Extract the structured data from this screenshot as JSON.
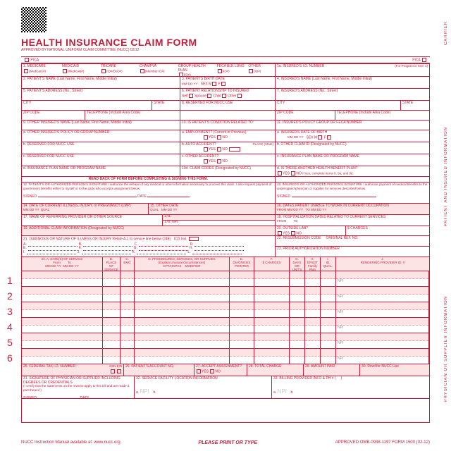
{
  "title": "HEALTH INSURANCE CLAIM FORM",
  "subtitle": "APPROVED BY NATIONAL UNIFORM CLAIM COMMITTEE (NUCC) 02/12",
  "pica": "PICA",
  "side": {
    "carrier": "CARRIER",
    "patient": "PATIENT AND INSURED INFORMATION",
    "phys": "PHYSICIAN OR SUPPLIER INFORMATION"
  },
  "r1": {
    "medicare": "MEDICARE",
    "medicaid": "MEDICAID",
    "tricare": "TRICARE",
    "champva": "CHAMPVA",
    "group": "GROUP HEALTH PLAN",
    "feca": "FECA BLK LUNG",
    "other": "OTHER",
    "sub_medicare": "(Medicare#)",
    "sub_medicaid": "(Medicaid#)",
    "sub_tricare": "(ID#/DoD#)",
    "sub_champva": "(Member ID#)",
    "sub_group": "(ID#)",
    "sub_feca": "(ID#)",
    "sub_other": "(ID#)",
    "ins_id": "1a. INSURED'S I.D. NUMBER",
    "ins_id_sub": "(For Program in Item 1)"
  },
  "r2": {
    "a": "2. PATIENT'S NAME (Last Name, First Name, Middle Initial)",
    "b": "3. PATIENT'S BIRTH DATE",
    "c": "4. INSURED'S NAME (Last Name, First Name, Middle Initial)",
    "mm": "MM",
    "dd": "DD",
    "yy": "YY",
    "sex": "SEX",
    "m": "M",
    "f": "F"
  },
  "r3": {
    "a": "5. PATIENT'S ADDRESS (No., Street)",
    "b": "6. PATIENT RELATIONSHIP TO INSURED",
    "c": "7. INSURED'S ADDRESS (No., Street)",
    "self": "Self",
    "spouse": "Spouse",
    "child": "Child",
    "other": "Other"
  },
  "r4": {
    "city": "CITY",
    "state": "STATE",
    "r8": "8. RESERVED FOR NUCC USE"
  },
  "r5": {
    "zip": "ZIP CODE",
    "tel": "TELEPHONE (Include Area Code)"
  },
  "r6": {
    "a": "9. OTHER INSURED'S NAME (Last Name, First Name, Middle Initial)",
    "b": "10. IS PATIENT'S CONDITION RELATED TO:",
    "c": "11. INSURED'S POLICY GROUP OR FECA NUMBER"
  },
  "r7": {
    "a": "a. OTHER INSURED'S POLICY OR GROUP NUMBER",
    "b": "a. EMPLOYMENT? (Current or Previous)",
    "c": "a. INSURED'S DATE OF BIRTH",
    "yes": "YES",
    "no": "NO"
  },
  "r8": {
    "a": "b. RESERVED FOR NUCC USE",
    "b": "b. AUTO ACCIDENT?",
    "c": "b. OTHER CLAIM ID (Designated by NUCC)",
    "place": "PLACE (State)"
  },
  "r9": {
    "a": "c. RESERVED FOR NUCC USE",
    "b": "c. OTHER ACCIDENT?",
    "c": "c. INSURANCE PLAN NAME OR PROGRAM NAME"
  },
  "r10": {
    "a": "d. INSURANCE PLAN NAME OR PROGRAM NAME",
    "b": "10d. CLAIM CODES (Designated by NUCC)",
    "c": "d. IS THERE ANOTHER HEALTH BENEFIT PLAN?",
    "ifyes": "If yes, complete items 9, 9a, and 9d."
  },
  "band": "READ BACK OF FORM BEFORE COMPLETING & SIGNING THIS FORM.",
  "r12": {
    "a": "12. PATIENT'S OR AUTHORIZED PERSON'S SIGNATURE  I authorize the release of any medical or other information necessary to process this claim. I also request payment of government benefits either to myself or to the party who accepts assignment below.",
    "b": "13. INSURED'S OR AUTHORIZED PERSON'S SIGNATURE  I authorize payment of medical benefits to the undersigned physician or supplier for services described below.",
    "signed": "SIGNED",
    "date": "DATE"
  },
  "r14": {
    "a": "14. DATE OF CURRENT ILLNESS, INJURY, or PREGNANCY (LMP)",
    "b": "15. OTHER DATE",
    "c": "16. DATES PATIENT UNABLE TO WORK IN CURRENT OCCUPATION",
    "qual": "QUAL",
    "from": "FROM",
    "to": "TO"
  },
  "r17": {
    "a": "17. NAME OF REFERRING PROVIDER OR OTHER SOURCE",
    "a17a": "17a.",
    "a17b": "17b.",
    "npi": "NPI",
    "b": "18. HOSPITALIZATION DATES RELATED TO CURRENT SERVICES"
  },
  "r19": {
    "a": "19. ADDITIONAL CLAIM INFORMATION (Designated by NUCC)",
    "b": "20. OUTSIDE LAB?",
    "c": "$ CHARGES"
  },
  "r21": {
    "a": "21. DIAGNOSIS OR NATURE OF ILLNESS OR INJURY  Relate A-L to service line below (24E)",
    "icd": "ICD Ind.",
    "b": "22. RESUBMISSION CODE",
    "ref": "ORIGINAL REF. NO.",
    "c": "23. PRIOR AUTHORIZATION NUMBER",
    "lA": "A.",
    "lB": "B.",
    "lC": "C.",
    "lD": "D.",
    "lE": "E.",
    "lF": "F.",
    "lG": "G.",
    "lH": "H.",
    "lI": "I.",
    "lJ": "J.",
    "lK": "K.",
    "lL": "L."
  },
  "hdr24": {
    "a": "24. A.     DATE(S) OF SERVICE",
    "from": "From",
    "to": "To",
    "b": "B.",
    "pos": "PLACE OF SERVICE",
    "c": "C.",
    "emg": "EMG",
    "d": "D. PROCEDURES, SERVICES, OR SUPPLIES",
    "d2": "(Explain Unusual Circumstances)",
    "cpt": "CPT/HCPCS",
    "mod": "MODIFIER",
    "e": "E.",
    "diag": "DIAGNOSIS POINTER",
    "f": "F.",
    "chg": "$ CHARGES",
    "g": "G.",
    "days": "DAYS OR UNITS",
    "h": "H.",
    "eps": "EPSDT Family Plan",
    "i": "I.",
    "qual": "ID. QUAL.",
    "j": "J.",
    "prov": "RENDERING PROVIDER ID. #"
  },
  "rownums": [
    "1",
    "2",
    "3",
    "4",
    "5",
    "6"
  ],
  "r25": {
    "a": "25. FEDERAL TAX I.D. NUMBER",
    "ssn": "SSN  EIN",
    "b": "26. PATIENT'S ACCOUNT NO.",
    "c": "27. ACCEPT ASSIGNMENT?",
    "d": "28. TOTAL CHARGE",
    "e": "29. AMOUNT PAID",
    "f": "30. Rsvd for NUCC Use"
  },
  "r31": {
    "a": "31. SIGNATURE OF PHYSICIAN OR SUPPLIER INCLUDING DEGREES OR CREDENTIALS",
    "a2": "(I certify that the statements on the reverse apply to this bill and are made a part thereof.)",
    "b": "32. SERVICE FACILITY LOCATION INFORMATION",
    "c": "33. BILLING PROVIDER INFO & PH #"
  },
  "npi": "NPI",
  "ab": {
    "a": "a.",
    "b": "b."
  },
  "footer": {
    "left": "NUCC Instruction Manual available at: www.nucc.org",
    "center": "PLEASE PRINT OR TYPE",
    "right": "APPROVED OMB-0938-1197 FORM 1500 (02-12)"
  },
  "colors": {
    "red": "#c41e3a",
    "pink": "#fde4e4"
  }
}
